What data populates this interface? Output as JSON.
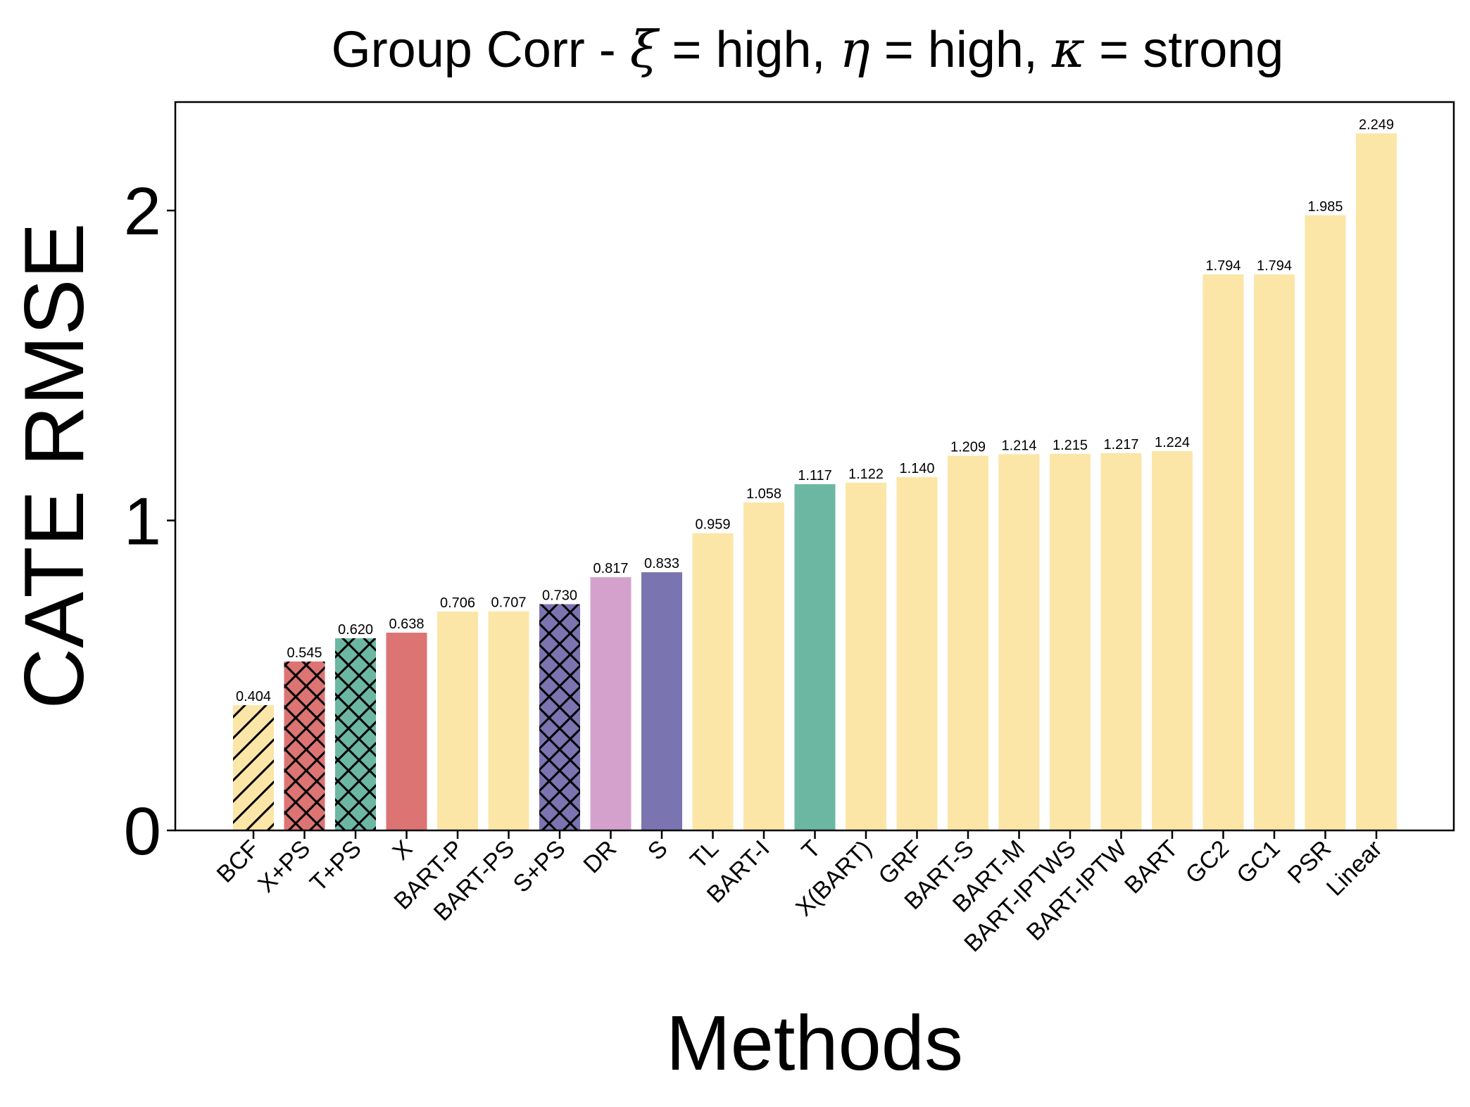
{
  "chart_data": {
    "type": "bar",
    "title_parts": {
      "prefix": "Group Corr - ",
      "xi_symbol": "ξ",
      "xi_value": " = high, ",
      "eta_symbol": "η",
      "eta_value": " = high, ",
      "kappa_symbol": "κ",
      "kappa_value": " = strong"
    },
    "xlabel": "Methods",
    "ylabel": "CATE RMSE",
    "ylim": [
      0,
      2.35
    ],
    "yticks": [
      0,
      1,
      2
    ],
    "ytick_labels": [
      "0",
      "1",
      "2"
    ],
    "grid": false,
    "categories": [
      "BCF",
      "X+PS",
      "T+PS",
      "X",
      "BART-P",
      "BART-PS",
      "S+PS",
      "DR",
      "S",
      "TL",
      "BART-I",
      "T",
      "X(BART)",
      "GRF",
      "BART-S",
      "BART-M",
      "BART-IPTWS",
      "BART-IPTW",
      "BART",
      "GC2",
      "GC1",
      "PSR",
      "Linear"
    ],
    "values": [
      0.404,
      0.545,
      0.62,
      0.638,
      0.706,
      0.707,
      0.73,
      0.817,
      0.833,
      0.959,
      1.058,
      1.117,
      1.122,
      1.14,
      1.209,
      1.214,
      1.215,
      1.217,
      1.224,
      1.794,
      1.794,
      1.985,
      2.249
    ],
    "value_labels": [
      "0.404",
      "0.545",
      "0.620",
      "0.638",
      "0.706",
      "0.707",
      "0.730",
      "0.817",
      "0.833",
      "0.959",
      "1.058",
      "1.117",
      "1.122",
      "1.140",
      "1.209",
      "1.214",
      "1.215",
      "1.217",
      "1.224",
      "1.794",
      "1.794",
      "1.985",
      "2.249"
    ],
    "colors": [
      "#fbe6a8",
      "#dc7474",
      "#6cb7a2",
      "#dc7474",
      "#fbe6a8",
      "#fbe6a8",
      "#7a74b0",
      "#d4a1cc",
      "#7a74b0",
      "#fbe6a8",
      "#fbe6a8",
      "#6cb7a2",
      "#fbe6a8",
      "#fbe6a8",
      "#fbe6a8",
      "#fbe6a8",
      "#fbe6a8",
      "#fbe6a8",
      "#fbe6a8",
      "#fbe6a8",
      "#fbe6a8",
      "#fbe6a8",
      "#fbe6a8"
    ],
    "hatches": [
      "diag",
      "cross",
      "cross",
      "none",
      "none",
      "none",
      "cross",
      "none",
      "none",
      "none",
      "none",
      "none",
      "none",
      "none",
      "none",
      "none",
      "none",
      "none",
      "none",
      "none",
      "none",
      "none",
      "none"
    ]
  }
}
